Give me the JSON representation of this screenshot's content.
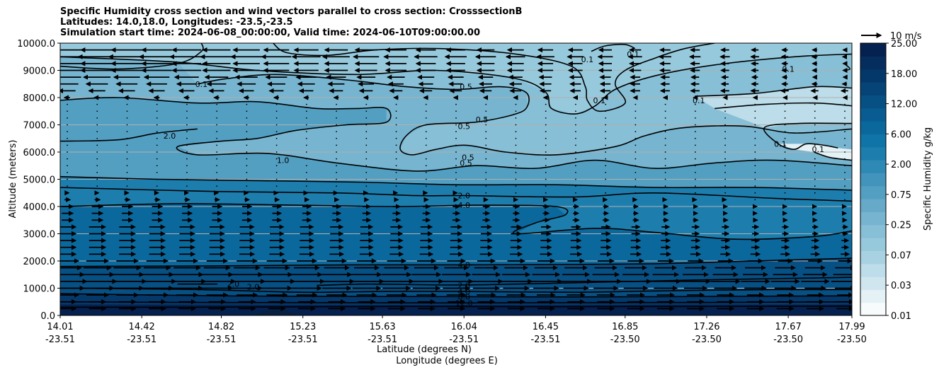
{
  "chart_data": {
    "type": "cross-section contour with wind vectors",
    "title_lines": [
      "Specific Humidity cross section and wind vectors parallel to cross section: CrosssectionB",
      "Latitudes: 14.0,18.0, Longitudes: -23.5,-23.5",
      "Simulation start time: 2024-06-08_00:00:00, Valid time: 2024-06-10T09:00:00.00"
    ],
    "ylabel": "Altitude (meters)",
    "xlabel_lines": [
      "Latitude (degrees N)",
      "Longitude (degrees E)"
    ],
    "ylim": [
      0,
      10000
    ],
    "y_ticks": [
      "0.0",
      "1000.0",
      "2000.0",
      "3000.0",
      "4000.0",
      "5000.0",
      "6000.0",
      "7000.0",
      "8000.0",
      "9000.0",
      "10000.0"
    ],
    "y_tick_values": [
      0,
      1000,
      2000,
      3000,
      4000,
      5000,
      6000,
      7000,
      8000,
      9000,
      10000
    ],
    "x_ticks": [
      {
        "lat": "14.01",
        "lon": "-23.51"
      },
      {
        "lat": "14.42",
        "lon": "-23.51"
      },
      {
        "lat": "14.82",
        "lon": "-23.51"
      },
      {
        "lat": "15.23",
        "lon": "-23.51"
      },
      {
        "lat": "15.63",
        "lon": "-23.51"
      },
      {
        "lat": "16.04",
        "lon": "-23.51"
      },
      {
        "lat": "16.45",
        "lon": "-23.51"
      },
      {
        "lat": "16.85",
        "lon": "-23.50"
      },
      {
        "lat": "17.26",
        "lon": "-23.50"
      },
      {
        "lat": "17.67",
        "lon": "-23.50"
      },
      {
        "lat": "17.99",
        "lon": "-23.50"
      }
    ],
    "x_tick_values": [
      14.01,
      14.42,
      14.82,
      15.23,
      15.63,
      16.04,
      16.45,
      16.85,
      17.26,
      17.67,
      17.99
    ],
    "grid": "horizontal",
    "colorbar": {
      "label": "Specific Humidity g/kg",
      "tick_labels": [
        "0.01",
        "0.03",
        "0.07",
        "0.25",
        "0.75",
        "2.00",
        "6.00",
        "12.00",
        "18.00",
        "25.00"
      ],
      "colors": [
        "#f7fbfc",
        "#e4f1f5",
        "#cfe6ee",
        "#bcdde9",
        "#a8d2e2",
        "#97c9dc",
        "#87bfd6",
        "#76b4cf",
        "#66a9c8",
        "#539fc2",
        "#4394bc",
        "#2f89b5",
        "#1d7eae",
        "#0f74a7",
        "#0a689d",
        "#085c91",
        "#075084",
        "#064477",
        "#05386a",
        "#052d5d",
        "#042150"
      ]
    },
    "contour_labels": [
      {
        "text": "0.1",
        "lat": 14.72,
        "z": 8500
      },
      {
        "text": "0.1",
        "lat": 16.66,
        "z": 9400
      },
      {
        "text": "0.1",
        "lat": 16.89,
        "z": 9600
      },
      {
        "text": "0.1",
        "lat": 17.67,
        "z": 9050
      },
      {
        "text": "0.1",
        "lat": 16.72,
        "z": 7900
      },
      {
        "text": "0.1",
        "lat": 17.22,
        "z": 7900
      },
      {
        "text": "0.1",
        "lat": 17.63,
        "z": 6300
      },
      {
        "text": "0.1",
        "lat": 17.82,
        "z": 6100
      },
      {
        "text": "0.5",
        "lat": 16.05,
        "z": 8400
      },
      {
        "text": "0.5",
        "lat": 16.13,
        "z": 7200
      },
      {
        "text": "0.5",
        "lat": 16.04,
        "z": 6950
      },
      {
        "text": "0.5",
        "lat": 16.06,
        "z": 5800
      },
      {
        "text": "0.5",
        "lat": 16.05,
        "z": 5600
      },
      {
        "text": "1.0",
        "lat": 15.13,
        "z": 5700
      },
      {
        "text": "2.0",
        "lat": 14.56,
        "z": 6600
      },
      {
        "text": "2.0",
        "lat": 16.04,
        "z": 4400
      },
      {
        "text": "4.0",
        "lat": 16.04,
        "z": 4050
      },
      {
        "text": "4.0",
        "lat": 16.04,
        "z": 1860
      },
      {
        "text": "2.0",
        "lat": 16.04,
        "z": 1100
      },
      {
        "text": "4.0",
        "lat": 16.04,
        "z": 870
      },
      {
        "text": "8.0",
        "lat": 16.04,
        "z": 690
      },
      {
        "text": "12.0",
        "lat": 16.04,
        "z": 460
      },
      {
        "text": "2.0",
        "lat": 14.88,
        "z": 1150
      },
      {
        "text": "2.0",
        "lat": 14.98,
        "z": 1050
      }
    ],
    "contours": [
      {
        "level": "0.1",
        "points": [
          [
            14.01,
            9150
          ],
          [
            14.3,
            9050
          ],
          [
            14.6,
            9250
          ],
          [
            14.72,
            9700
          ],
          [
            14.72,
            10000
          ]
        ]
      },
      {
        "level": "0.1",
        "points": [
          [
            15.08,
            10000
          ],
          [
            15.15,
            9650
          ],
          [
            15.35,
            9550
          ],
          [
            15.6,
            9750
          ],
          [
            15.92,
            9800
          ],
          [
            16.3,
            9600
          ],
          [
            16.58,
            9150
          ],
          [
            16.65,
            8400
          ],
          [
            16.66,
            7900
          ],
          [
            16.72,
            7500
          ],
          [
            16.85,
            7800
          ],
          [
            16.8,
            8500
          ],
          [
            16.85,
            9000
          ],
          [
            17.0,
            9450
          ],
          [
            17.15,
            9800
          ],
          [
            17.3,
            10000
          ]
        ]
      },
      {
        "level": "0.1",
        "points": [
          [
            16.68,
            9700
          ],
          [
            16.75,
            9900
          ],
          [
            16.85,
            9950
          ],
          [
            16.9,
            9800
          ]
        ]
      },
      {
        "level": "0.1",
        "points": [
          [
            17.3,
            7600
          ],
          [
            17.55,
            7750
          ],
          [
            17.8,
            7800
          ],
          [
            17.99,
            7700
          ]
        ]
      },
      {
        "level": "0.1",
        "points": [
          [
            17.2,
            8050
          ],
          [
            17.5,
            8150
          ],
          [
            17.8,
            8400
          ],
          [
            17.99,
            8350
          ]
        ]
      },
      {
        "level": "0.1",
        "points": [
          [
            17.92,
            6150
          ],
          [
            17.85,
            6250
          ],
          [
            17.76,
            6300
          ],
          [
            17.7,
            6100
          ],
          [
            17.62,
            6300
          ],
          [
            17.55,
            6900
          ],
          [
            17.72,
            7050
          ],
          [
            17.99,
            7050
          ]
        ]
      },
      {
        "level": "0.1",
        "points": [
          [
            17.8,
            6000
          ],
          [
            17.88,
            5800
          ],
          [
            17.99,
            5700
          ]
        ]
      },
      {
        "level": "0.1",
        "points": [
          [
            17.96,
            9200
          ],
          [
            17.98,
            9050
          ],
          [
            17.95,
            9000
          ]
        ]
      },
      {
        "level": "0.5",
        "points": [
          [
            14.01,
            9500
          ],
          [
            14.6,
            9300
          ],
          [
            15.0,
            9000
          ],
          [
            15.5,
            8850
          ],
          [
            15.9,
            9000
          ],
          [
            16.3,
            8700
          ],
          [
            16.45,
            8200
          ],
          [
            16.48,
            7600
          ],
          [
            16.6,
            7400
          ],
          [
            16.7,
            7700
          ],
          [
            16.8,
            8300
          ],
          [
            17.0,
            8800
          ],
          [
            17.3,
            9200
          ],
          [
            17.7,
            9500
          ],
          [
            17.99,
            9600
          ]
        ]
      },
      {
        "level": "0.5",
        "points": [
          [
            14.7,
            8500
          ],
          [
            14.85,
            8700
          ],
          [
            15.1,
            8850
          ],
          [
            15.45,
            8650
          ],
          [
            15.75,
            8400
          ],
          [
            16.0,
            8300
          ],
          [
            16.22,
            8400
          ],
          [
            16.35,
            8200
          ],
          [
            16.36,
            7700
          ],
          [
            16.3,
            7400
          ],
          [
            16.1,
            7100
          ],
          [
            15.85,
            7000
          ],
          [
            15.75,
            6600
          ],
          [
            15.72,
            6100
          ],
          [
            15.78,
            5900
          ],
          [
            15.9,
            6100
          ],
          [
            16.05,
            6250
          ],
          [
            16.25,
            6000
          ],
          [
            16.5,
            5900
          ],
          [
            16.8,
            6200
          ],
          [
            16.95,
            6600
          ],
          [
            17.15,
            6900
          ],
          [
            17.45,
            6950
          ],
          [
            17.7,
            6700
          ],
          [
            17.99,
            6850
          ]
        ]
      },
      {
        "level": "1.0",
        "points": [
          [
            14.01,
            7900
          ],
          [
            14.3,
            8000
          ],
          [
            14.7,
            7800
          ],
          [
            15.0,
            7850
          ],
          [
            15.3,
            7600
          ],
          [
            15.5,
            7600
          ],
          [
            15.65,
            7600
          ],
          [
            15.65,
            7100
          ],
          [
            15.45,
            7000
          ],
          [
            15.2,
            6800
          ],
          [
            15.0,
            6500
          ],
          [
            14.82,
            6400
          ],
          [
            14.6,
            6200
          ],
          [
            14.7,
            5900
          ],
          [
            15.05,
            5950
          ],
          [
            15.4,
            5600
          ],
          [
            15.8,
            5300
          ],
          [
            16.1,
            5500
          ],
          [
            16.4,
            5400
          ],
          [
            16.7,
            5700
          ],
          [
            17.0,
            5400
          ],
          [
            17.3,
            5600
          ],
          [
            17.6,
            5700
          ],
          [
            17.99,
            5500
          ]
        ]
      },
      {
        "level": "2.0",
        "points": [
          [
            14.01,
            6400
          ],
          [
            14.3,
            6450
          ],
          [
            14.5,
            6700
          ],
          [
            14.7,
            6850
          ]
        ]
      },
      {
        "level": "2.0",
        "points": [
          [
            14.01,
            5100
          ],
          [
            14.5,
            5000
          ],
          [
            15.0,
            4950
          ],
          [
            15.5,
            4900
          ],
          [
            16.0,
            4800
          ],
          [
            16.5,
            4800
          ],
          [
            17.0,
            4700
          ],
          [
            17.5,
            4700
          ],
          [
            17.99,
            4600
          ]
        ]
      },
      {
        "level": "2.0",
        "points": [
          [
            14.01,
            4700
          ],
          [
            14.8,
            4550
          ],
          [
            15.4,
            4500
          ],
          [
            15.8,
            4400
          ],
          [
            16.04,
            4400
          ],
          [
            16.6,
            4350
          ],
          [
            17.0,
            4500
          ],
          [
            17.6,
            4300
          ],
          [
            17.99,
            4200
          ]
        ]
      },
      {
        "level": "4.0",
        "points": [
          [
            14.01,
            4000
          ],
          [
            14.6,
            4100
          ],
          [
            15.2,
            4050
          ],
          [
            15.7,
            4000
          ],
          [
            16.1,
            4050
          ],
          [
            16.5,
            4000
          ],
          [
            16.55,
            3700
          ],
          [
            16.4,
            3400
          ],
          [
            16.3,
            3000
          ],
          [
            16.7,
            3200
          ],
          [
            17.0,
            3050
          ],
          [
            17.4,
            2800
          ],
          [
            17.8,
            2900
          ],
          [
            17.99,
            3100
          ]
        ]
      },
      {
        "level": "4.0",
        "points": [
          [
            14.01,
            1800
          ],
          [
            14.8,
            1820
          ],
          [
            15.5,
            1860
          ],
          [
            16.04,
            1860
          ],
          [
            16.5,
            1870
          ],
          [
            17.0,
            1900
          ],
          [
            17.5,
            2000
          ],
          [
            17.99,
            2100
          ]
        ]
      },
      {
        "level": "2.0",
        "points": [
          [
            15.3,
            1100
          ],
          [
            15.55,
            1150
          ],
          [
            16.04,
            1120
          ],
          [
            16.6,
            1200
          ],
          [
            17.2,
            1300
          ],
          [
            17.6,
            1350
          ],
          [
            17.99,
            1400
          ]
        ]
      },
      {
        "level": "2.0",
        "points": [
          [
            14.6,
            1150
          ],
          [
            14.8,
            1150
          ]
        ]
      },
      {
        "level": "4.0",
        "points": [
          [
            14.01,
            1000
          ],
          [
            14.7,
            950
          ],
          [
            15.23,
            850
          ],
          [
            15.63,
            880
          ],
          [
            16.04,
            880
          ],
          [
            16.6,
            850
          ],
          [
            17.0,
            900
          ],
          [
            17.6,
            950
          ],
          [
            17.99,
            950
          ]
        ]
      },
      {
        "level": "8.0",
        "points": [
          [
            14.01,
            800
          ],
          [
            14.8,
            720
          ],
          [
            15.4,
            700
          ],
          [
            16.04,
            690
          ],
          [
            16.6,
            680
          ],
          [
            17.3,
            700
          ],
          [
            17.99,
            720
          ]
        ]
      },
      {
        "level": "12.0",
        "points": [
          [
            14.01,
            500
          ],
          [
            14.6,
            480
          ],
          [
            15.2,
            470
          ],
          [
            16.04,
            460
          ],
          [
            16.8,
            470
          ],
          [
            17.4,
            480
          ],
          [
            17.99,
            500
          ]
        ]
      },
      {
        "level": "12.0",
        "points": [
          [
            14.01,
            300
          ],
          [
            14.6,
            300
          ],
          [
            15.3,
            320
          ],
          [
            15.9,
            330
          ],
          [
            16.5,
            320
          ],
          [
            17.2,
            330
          ],
          [
            17.99,
            340
          ]
        ]
      }
    ],
    "wind": {
      "legend_label": "10 m/s",
      "levels": [
        250,
        500,
        750,
        1000,
        1250,
        1500,
        1750,
        2000,
        2250,
        2500,
        2750,
        3000,
        3250,
        3500,
        3750,
        4000,
        4250,
        4500,
        4750,
        5000,
        5250,
        5500,
        5750,
        6000,
        6250,
        6500,
        6750,
        7000,
        7250,
        7500,
        7750,
        8000,
        8250,
        8500,
        8750,
        9000,
        9250,
        9500,
        9750
      ],
      "u_west": [
        3,
        3,
        4,
        6,
        7,
        6,
        5,
        4,
        3,
        3,
        3,
        3,
        3,
        2,
        2,
        2,
        1,
        0.5,
        0,
        0,
        0,
        0,
        0,
        0,
        0,
        0,
        0,
        0,
        0,
        0,
        0,
        -1,
        -3,
        -4,
        -5,
        -6,
        -6,
        -7,
        -6
      ],
      "u_east_factor": [
        1,
        1,
        0.7,
        0.6,
        0.7,
        0.7,
        0.7,
        0.6,
        0.5,
        0.4,
        0.4,
        0.3,
        0.3,
        0.3,
        0.2,
        0.2,
        0.2,
        0.2,
        0.2,
        0,
        0,
        0,
        0,
        0,
        0,
        0,
        0,
        0,
        0,
        0,
        0,
        0.5,
        0.4,
        0.2,
        0.1,
        0.1,
        0.1,
        0.1,
        0.1
      ]
    }
  }
}
